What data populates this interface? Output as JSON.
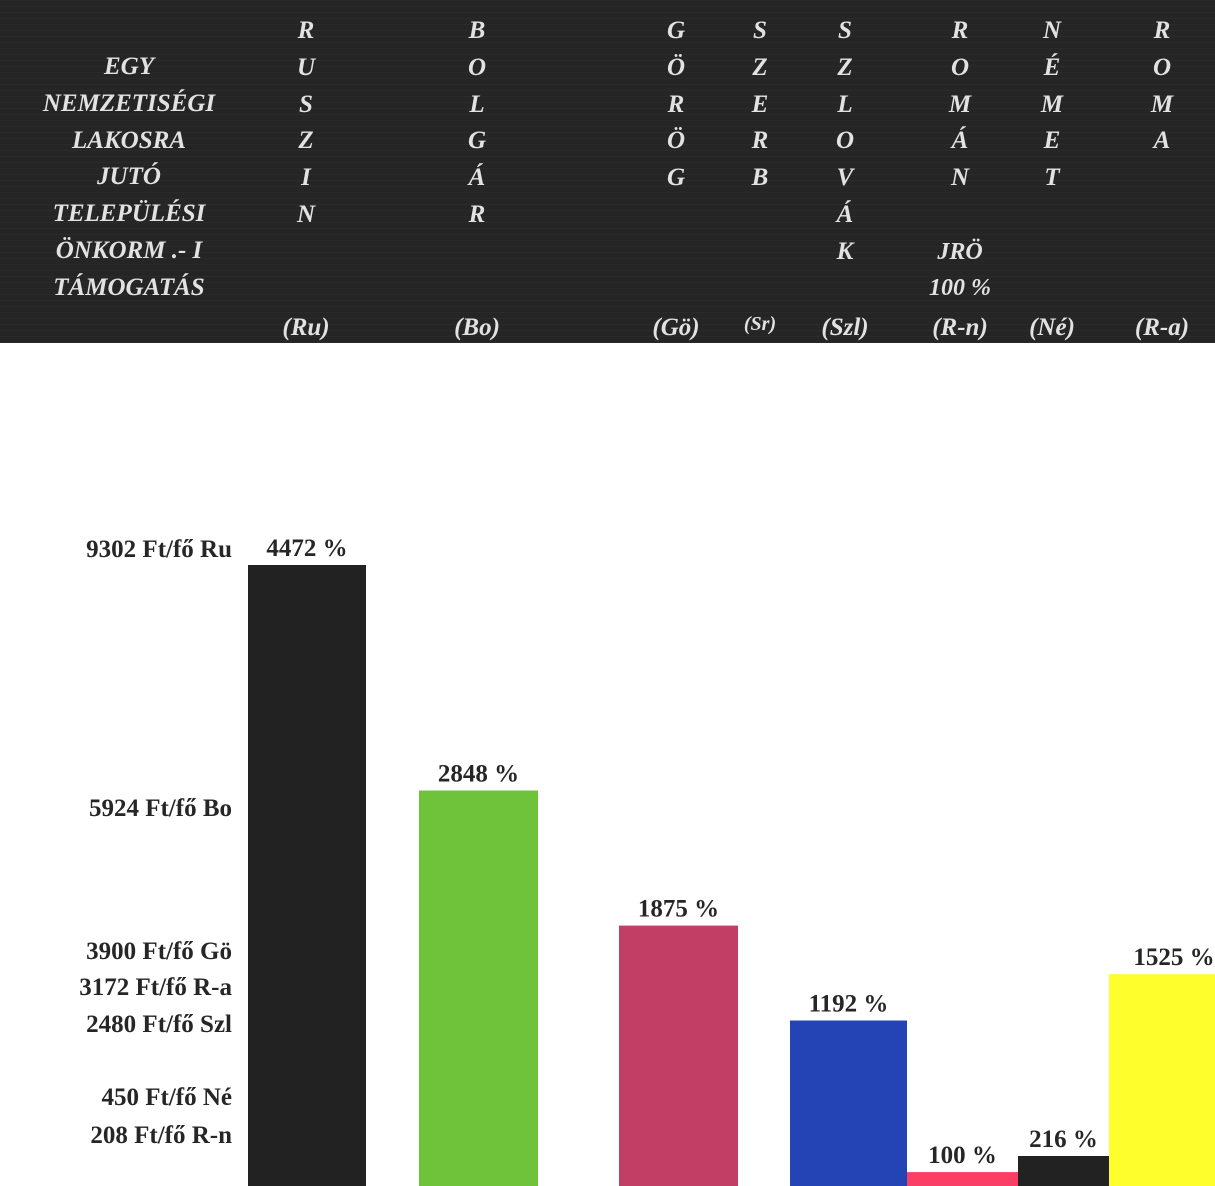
{
  "header": {
    "left_lines": [
      "EGY",
      "NEMZETISÉGI",
      "LAKOSRA",
      "JUTÓ",
      "TELEPÜLÉSI",
      "ÖNKORM .- I",
      "TÁMOGATÁS"
    ],
    "columns": [
      {
        "letters": [
          "R",
          "U",
          "S",
          "Z",
          "I",
          "N"
        ],
        "abbr": "(Ru)"
      },
      {
        "letters": [
          "B",
          "O",
          "L",
          "G",
          "Á",
          "R"
        ],
        "abbr": "(Bo)"
      },
      {
        "letters": [
          "G",
          "Ö",
          "R",
          "Ö",
          "G"
        ],
        "abbr": "(Gö)"
      },
      {
        "letters": [
          "S",
          "Z",
          "E",
          "R",
          "B"
        ],
        "abbr": "(Sr)"
      },
      {
        "letters": [
          "S",
          "Z",
          "L",
          "O",
          "V",
          "Á",
          "K"
        ],
        "abbr": "(Szl)"
      },
      {
        "letters": [
          "R",
          "O",
          "M",
          "Á",
          "N"
        ],
        "extra": [
          "JRÖ",
          "100 %"
        ],
        "abbr": "(R-n)"
      },
      {
        "letters": [
          "N",
          "É",
          "M",
          "E",
          "T"
        ],
        "abbr": "(Né)"
      },
      {
        "letters": [
          "R",
          "O",
          "M",
          "A"
        ],
        "abbr": "(R-a)"
      }
    ]
  },
  "y_labels": [
    "9302  Ft/fő  Ru",
    "5924  Ft/fő  Bo",
    "3900  Ft/fő  Gö",
    "3172  Ft/fő  R-a",
    "2480  Ft/fő  Szl",
    "450  Ft/fő  Né",
    "208  Ft/fő  R-n"
  ],
  "chart_data": {
    "type": "bar",
    "categories": [
      "Ru",
      "Bo",
      "Gö",
      "Szl",
      "R-n",
      "Né",
      "R-a"
    ],
    "values": [
      4472,
      2848,
      1875,
      1192,
      100,
      216,
      1525
    ],
    "value_labels": [
      "4472  %",
      "2848  %",
      "1875  %",
      "1192  %",
      "100  %",
      "216  %",
      "1525  %"
    ],
    "colors": [
      "#222222",
      "#6fc33a",
      "#c23e64",
      "#2443b4",
      "#fb3e66",
      "#222222",
      "#fefe2c"
    ],
    "ylabel": "",
    "xlabel": "",
    "legend": "none",
    "grid": false
  }
}
